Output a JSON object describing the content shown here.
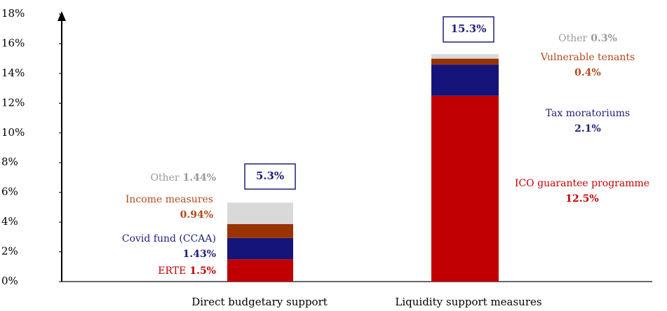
{
  "chart_data": {
    "type": "stacked_bar",
    "categories": [
      "Direct budgetary support",
      "Liquidity support measures"
    ],
    "series": [
      {
        "name": "ERTE",
        "color": "#c00000",
        "label_color": "#c00000",
        "values": [
          1.5,
          null
        ],
        "value_labels": [
          "1.5%",
          null
        ]
      },
      {
        "name": "Covid fund (CCAA)",
        "color": "#14147a",
        "label_color": "#1f1f7a",
        "values": [
          1.43,
          null
        ],
        "value_labels": [
          "1.43%",
          null
        ]
      },
      {
        "name": "Income measures",
        "color": "#993300",
        "label_color": "#b04a1a",
        "values": [
          0.94,
          null
        ],
        "value_labels": [
          "0.94%",
          null
        ]
      },
      {
        "name": "Other",
        "color": "#d9d9d9",
        "label_color": "#9a9a9a",
        "values": [
          1.44,
          null
        ],
        "value_labels": [
          "1.44%",
          null
        ]
      },
      {
        "name": "ICO guarantee programme",
        "color": "#c00000",
        "label_color": "#c00000",
        "values": [
          null,
          12.5
        ],
        "value_labels": [
          null,
          "12.5%"
        ]
      },
      {
        "name": "Tax moratoriums",
        "color": "#14147a",
        "label_color": "#1f1f7a",
        "values": [
          null,
          2.1
        ],
        "value_labels": [
          null,
          "2.1%"
        ]
      },
      {
        "name": "Vulnerable tenants",
        "color": "#993300",
        "label_color": "#b04a1a",
        "values": [
          null,
          0.4
        ],
        "value_labels": [
          null,
          "0.4%"
        ]
      },
      {
        "name": "Other",
        "color": "#d9d9d9",
        "label_color": "#9a9a9a",
        "values": [
          null,
          0.3
        ],
        "value_labels": [
          null,
          "0.3%"
        ]
      }
    ],
    "totals": [
      5.3,
      15.3
    ],
    "total_labels": [
      "5.3%",
      "15.3%"
    ],
    "ylim": [
      0,
      18
    ],
    "yticks": [
      {
        "value": 0,
        "label": "0%"
      },
      {
        "value": 2,
        "label": "2%"
      },
      {
        "value": 4,
        "label": "4%"
      },
      {
        "value": 6,
        "label": "6%"
      },
      {
        "value": 8,
        "label": "8%"
      },
      {
        "value": 10,
        "label": "10%"
      },
      {
        "value": 12,
        "label": "12%"
      },
      {
        "value": 14,
        "label": "14%"
      },
      {
        "value": 16,
        "label": "16%"
      },
      {
        "value": 18,
        "label": "18%"
      }
    ]
  }
}
